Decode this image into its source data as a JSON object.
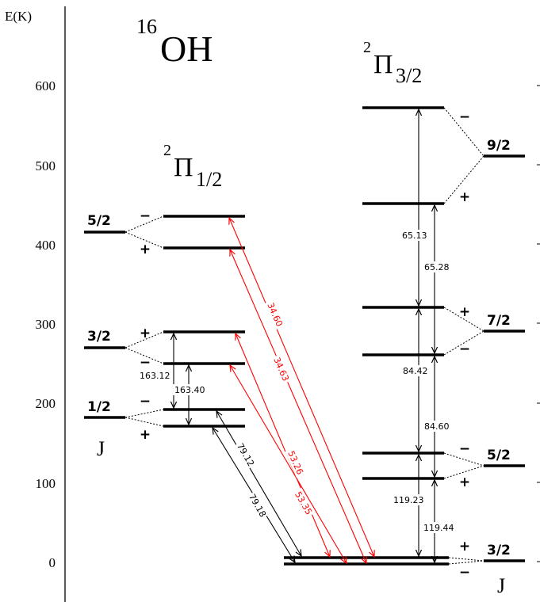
{
  "axis": {
    "label": "E(K)",
    "ticks": [
      {
        "value": 0,
        "label": "0"
      },
      {
        "value": 100,
        "label": "100"
      },
      {
        "value": 200,
        "label": "200"
      },
      {
        "value": 300,
        "label": "300"
      },
      {
        "value": 400,
        "label": "400"
      },
      {
        "value": 500,
        "label": "500"
      },
      {
        "value": 600,
        "label": "600"
      }
    ]
  },
  "title": {
    "mass": "16",
    "molecule": "OH"
  },
  "ladders": [
    {
      "id": "pi12",
      "sup": "2",
      "base": "Π",
      "sub": "1/2"
    },
    {
      "id": "pi32",
      "sup": "2",
      "base": "Π",
      "sub": "3/2"
    }
  ],
  "j_label": "J",
  "levels_pi12": [
    {
      "J": "1/2",
      "energy": 181.9,
      "upper": {
        "parity": "−",
        "energy": 188.8
      },
      "lower": {
        "parity": "+",
        "energy": 170.8
      }
    },
    {
      "J": "3/2",
      "energy": 270.1,
      "upper": {
        "parity": "+",
        "energy": 290.0
      },
      "lower": {
        "parity": "−",
        "energy": 250.0
      }
    },
    {
      "J": "5/2",
      "energy": 415.5,
      "upper": {
        "parity": "−",
        "energy": 436.0
      },
      "lower": {
        "parity": "+",
        "energy": 396.0
      }
    }
  ],
  "levels_pi32": [
    {
      "J": "3/2",
      "energy": 0.0,
      "upper": {
        "parity": "+",
        "energy": 5.0
      },
      "lower": {
        "parity": "−",
        "energy": -3.0
      }
    },
    {
      "J": "5/2",
      "energy": 120.5,
      "upper": {
        "parity": "−",
        "energy": 136.0
      },
      "lower": {
        "parity": "+",
        "energy": 104.5
      }
    },
    {
      "J": "7/2",
      "energy": 290.5,
      "upper": {
        "parity": "+",
        "energy": 320.5
      },
      "lower": {
        "parity": "−",
        "energy": 260.5
      }
    },
    {
      "J": "9/2",
      "energy": 511.0,
      "upper": {
        "parity": "−",
        "energy": 572.5
      },
      "lower": {
        "parity": "+",
        "energy": 451.5
      }
    }
  ],
  "transitions": [
    {
      "label": "163.12",
      "color": "#000000"
    },
    {
      "label": "163.40",
      "color": "#000000"
    },
    {
      "label": "79.12",
      "color": "#000000"
    },
    {
      "label": "79.18",
      "color": "#000000"
    },
    {
      "label": "34.60",
      "color": "#ff0000"
    },
    {
      "label": "34.63",
      "color": "#ff0000"
    },
    {
      "label": "53.26",
      "color": "#ff0000"
    },
    {
      "label": "53.35",
      "color": "#ff0000"
    },
    {
      "label": "65.13",
      "color": "#000000"
    },
    {
      "label": "65.28",
      "color": "#000000"
    },
    {
      "label": "84.42",
      "color": "#000000"
    },
    {
      "label": "84.60",
      "color": "#000000"
    },
    {
      "label": "119.23",
      "color": "#000000"
    },
    {
      "label": "119.44",
      "color": "#000000"
    }
  ]
}
